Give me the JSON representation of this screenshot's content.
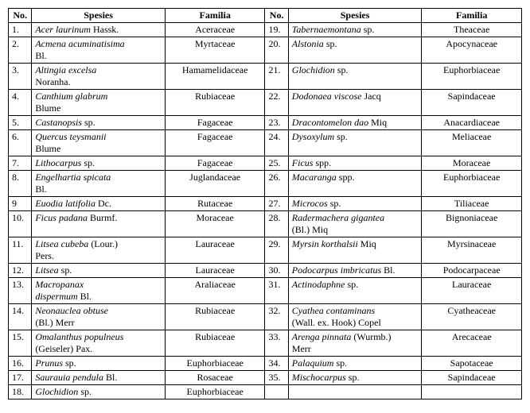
{
  "headers": {
    "no": "No.",
    "spesies": "Spesies",
    "familia": "Familia"
  },
  "rows": [
    {
      "n1": "1.",
      "s1a": "Acer laurinum",
      "s1b": " Hassk.",
      "f1": "Aceraceae",
      "n2": "19.",
      "s2a": "Tabernaemontana",
      "s2b": " sp.",
      "f2": "Theaceae"
    },
    {
      "n1": "2.",
      "s1a": "Acmena acuminatisima",
      "s1b": "\nBl.",
      "f1": "Myrtaceae",
      "n2": "20.",
      "s2a": "Alstonia",
      "s2b": " sp.",
      "f2": "Apocynaceae"
    },
    {
      "n1": "3.",
      "s1a": "Altingia excelsa",
      "s1b": "\nNoranha.",
      "f1": "Hamamelidaceae",
      "n2": "21.",
      "s2a": "Glochidion",
      "s2b": " sp.",
      "f2": "Euphorbiaceae"
    },
    {
      "n1": "4.",
      "s1a": "Canthium glabrum",
      "s1b": "\nBlume",
      "f1": "Rubiaceae",
      "n2": "22.",
      "s2a": "Dodonaea viscose",
      "s2b": " Jacq",
      "f2": "Sapindaceae"
    },
    {
      "n1": "5.",
      "s1a": "Castanopsis",
      "s1b": " sp.",
      "f1": "Fagaceae",
      "n2": "23.",
      "s2a": "Dracontomelon dao",
      "s2b": " Miq",
      "f2": "Anacardiaceae"
    },
    {
      "n1": "6.",
      "s1a": "Quercus teysmanii",
      "s1b": "\nBlume",
      "f1": "Fagaceae",
      "n2": "24.",
      "s2a": "Dysoxylum",
      "s2b": " sp.",
      "f2": "Meliaceae"
    },
    {
      "n1": "7.",
      "s1a": "Lithocarpus",
      "s1b": " sp.",
      "f1": "Fagaceae",
      "n2": "25.",
      "s2a": "Ficus",
      "s2b": " spp.",
      "f2": "Moraceae"
    },
    {
      "n1": "8.",
      "s1a": "Engelhartia spicata",
      "s1b": "\nBl.",
      "f1": "Juglandaceae",
      "n2": "26.",
      "s2a": "Macaranga",
      "s2b": " spp.",
      "f2": "Euphorbiaceae"
    },
    {
      "n1": "9",
      "s1a": "Euodia latifolia",
      "s1b": " Dc.",
      "f1": "Rutaceae",
      "n2": "27.",
      "s2a": "Microcos",
      "s2b": " sp.",
      "f2": "Tiliaceae"
    },
    {
      "n1": "10.",
      "s1a": "Ficus padana",
      "s1b": " Burmf.",
      "f1": "Moraceae",
      "n2": "28.",
      "s2a": "Radermachera gigantea",
      "s2b": "\n(Bl.) Miq",
      "f2": "Bignoniaceae"
    },
    {
      "n1": "11.",
      "s1a": "Litsea cubeba",
      "s1b": " (Lour.)\nPers.",
      "f1": "Lauraceae",
      "n2": "29.",
      "s2a": "Myrsin korthalsii",
      "s2b": " Miq",
      "f2": "Myrsinaceae"
    },
    {
      "n1": "12.",
      "s1a": "Litsea",
      "s1b": " sp.",
      "f1": "Lauraceae",
      "n2": "30.",
      "s2a": "Podocarpus imbricatus",
      "s2b": " Bl.",
      "f2": "Podocarpaceae"
    },
    {
      "n1": "13.",
      "s1a": "Macropanax\ndispermum",
      "s1b": " Bl.",
      "f1": "Araliaceae",
      "n2": "31.",
      "s2a": "Actinodaphne",
      "s2b": " sp.",
      "f2": "Lauraceae"
    },
    {
      "n1": "14.",
      "s1a": "Neonauclea obtuse",
      "s1b": "\n(Bl.) Merr",
      "f1": "Rubiaceae",
      "n2": "32.",
      "s2a": "Cyathea contaminans",
      "s2b": "\n(Wall. ex. Hook) Copel",
      "f2": "Cyatheaceae"
    },
    {
      "n1": "15.",
      "s1a": "Omalanthus populneus",
      "s1b": "\n(Geiseler) Pax.",
      "f1": "Rubiaceae",
      "n2": "33.",
      "s2a": "Arenga pinnata",
      "s2b": " (Wurmb.)\nMerr",
      "f2": "Arecaceae"
    },
    {
      "n1": "16.",
      "s1a": "Prunus",
      "s1b": " sp.",
      "f1": "Euphorbiaceae",
      "n2": "34.",
      "s2a": "Palaquium",
      "s2b": " sp.",
      "f2": "Sapotaceae"
    },
    {
      "n1": "17.",
      "s1a": "Saurauia pendula",
      "s1b": " Bl.",
      "f1": "Rosaceae",
      "n2": "35.",
      "s2a": "Mischocarpus",
      "s2b": " sp.",
      "f2": "Sapindaceae"
    },
    {
      "n1": "18.",
      "s1a": "Glochidion",
      "s1b": " sp.",
      "f1": "Euphorbiaceae",
      "n2": "",
      "s2a": "",
      "s2b": "",
      "f2": ""
    }
  ]
}
